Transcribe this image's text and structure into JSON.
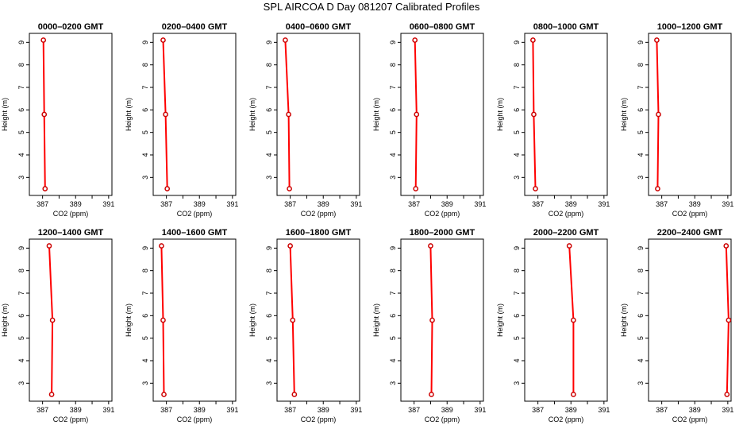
{
  "title": "SPL AIRCOA D  Day 081207  Calibrated Profiles",
  "chart_data": {
    "type": "line",
    "title": "SPL AIRCOA D  Day 081207  Calibrated Profiles",
    "xlabel": "CO2 (ppm)",
    "ylabel": "Height (m)",
    "xlim": [
      386.2,
      391.2
    ],
    "ylim": [
      2.2,
      9.4
    ],
    "xticks": [
      387,
      388,
      389,
      390,
      391
    ],
    "xtick_labels": [
      "387",
      "",
      "389",
      "",
      "391"
    ],
    "yticks": [
      3,
      4,
      5,
      6,
      7,
      8,
      9
    ],
    "ytick_labels": [
      "3",
      "4",
      "5",
      "6",
      "7",
      "8",
      "9"
    ],
    "line_color": "#ff0000",
    "marker_color": "#cc0000",
    "panels": [
      {
        "title": "0000–0200 GMT",
        "series": [
          {
            "x": [
              387.05,
              387.1,
              387.15
            ],
            "y": [
              9.1,
              5.8,
              2.5
            ]
          }
        ]
      },
      {
        "title": "0200–0400 GMT",
        "series": [
          {
            "x": [
              386.8,
              386.95,
              387.05
            ],
            "y": [
              9.1,
              5.8,
              2.5
            ]
          }
        ]
      },
      {
        "title": "0400–0600 GMT",
        "series": [
          {
            "x": [
              386.7,
              386.9,
              386.95
            ],
            "y": [
              9.1,
              5.8,
              2.5
            ]
          }
        ]
      },
      {
        "title": "0600–0800 GMT",
        "series": [
          {
            "x": [
              387.05,
              387.15,
              387.1
            ],
            "y": [
              9.1,
              5.8,
              2.5
            ]
          }
        ]
      },
      {
        "title": "0800–1000 GMT",
        "series": [
          {
            "x": [
              386.7,
              386.75,
              386.85
            ],
            "y": [
              9.1,
              5.8,
              2.5
            ]
          }
        ]
      },
      {
        "title": "1000–1200 GMT",
        "series": [
          {
            "x": [
              386.7,
              386.8,
              386.75
            ],
            "y": [
              9.1,
              5.8,
              2.5
            ]
          }
        ]
      },
      {
        "title": "1200–1400 GMT",
        "series": [
          {
            "x": [
              387.4,
              387.6,
              387.55
            ],
            "y": [
              9.1,
              5.8,
              2.5
            ]
          }
        ]
      },
      {
        "title": "1400–1600 GMT",
        "series": [
          {
            "x": [
              386.7,
              386.8,
              386.85
            ],
            "y": [
              9.1,
              5.8,
              2.5
            ]
          }
        ]
      },
      {
        "title": "1600–1800 GMT",
        "series": [
          {
            "x": [
              387.0,
              387.15,
              387.25
            ],
            "y": [
              9.1,
              5.8,
              2.5
            ]
          }
        ]
      },
      {
        "title": "1800–2000 GMT",
        "series": [
          {
            "x": [
              388.0,
              388.1,
              388.05
            ],
            "y": [
              9.1,
              5.8,
              2.5
            ]
          }
        ]
      },
      {
        "title": "2000–2200 GMT",
        "series": [
          {
            "x": [
              388.9,
              389.15,
              389.15
            ],
            "y": [
              9.1,
              5.8,
              2.5
            ]
          }
        ]
      },
      {
        "title": "2200–2400 GMT",
        "series": [
          {
            "x": [
              390.9,
              391.05,
              390.95
            ],
            "y": [
              9.1,
              5.8,
              2.5
            ]
          }
        ]
      }
    ]
  }
}
